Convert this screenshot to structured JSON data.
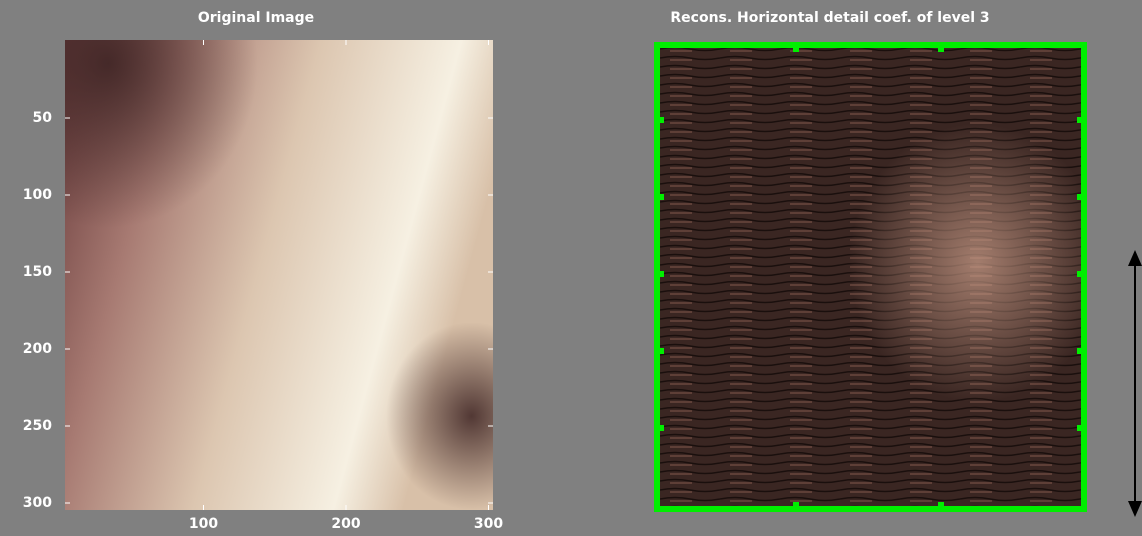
{
  "left_panel": {
    "title": "Original Image",
    "xticks": [
      100,
      200,
      300
    ],
    "yticks": [
      50,
      100,
      150,
      200,
      250,
      300
    ]
  },
  "right_panel": {
    "title": "Recons. Horizontal detail coef. of level 3"
  }
}
